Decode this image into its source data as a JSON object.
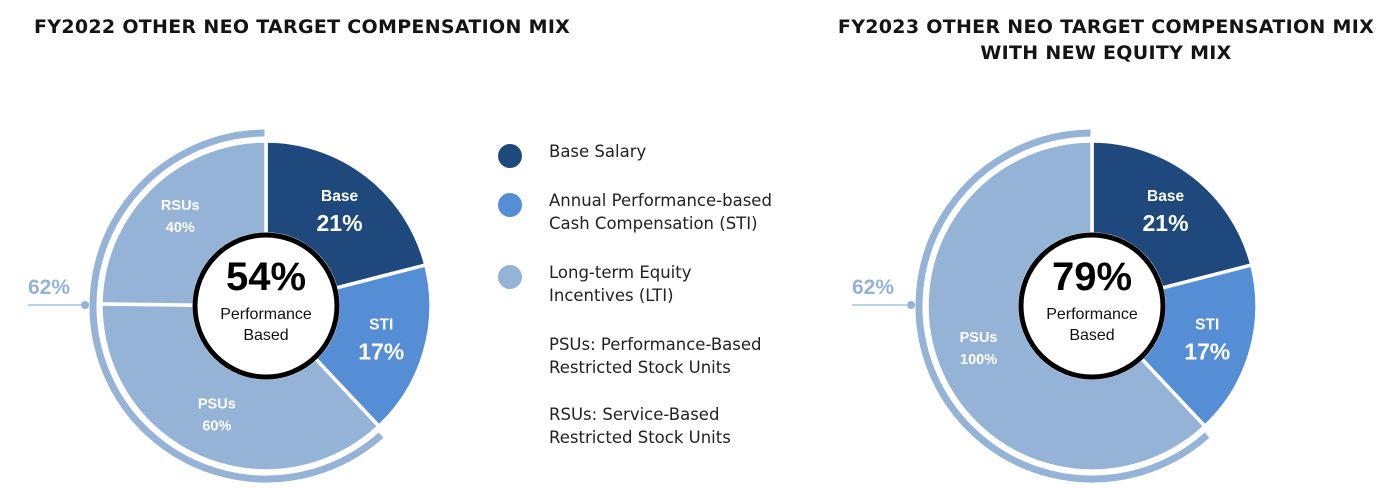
{
  "colors": {
    "base": "#1f497d",
    "sti": "#558ed5",
    "lti": "#95b3d7",
    "center_ring": "#000000",
    "text_dark": "#141414",
    "text_light": "#ffffff"
  },
  "legend": {
    "items": [
      {
        "key": "base",
        "label": "Base Salary"
      },
      {
        "key": "sti",
        "label": "Annual Performance-based\nCash Compensation (STI)"
      },
      {
        "key": "lti",
        "label": "Long-term Equity\nIncentives (LTI)"
      }
    ],
    "notes": [
      "PSUs: Performance-Based\nRestricted Stock Units",
      "RSUs: Service-Based\nRestricted Stock Units"
    ]
  },
  "chart_data": [
    {
      "type": "pie",
      "title": "FY2022 OTHER NEO TARGET COMPENSATION MIX",
      "center_value": "54%",
      "center_label": [
        "Performance",
        "Based"
      ],
      "outer_label": "62%",
      "slices": [
        {
          "name": "Base",
          "value": 21,
          "label": "21%",
          "color": "base"
        },
        {
          "name": "STI",
          "value": 17,
          "label": "17%",
          "color": "sti"
        },
        {
          "name": "PSUs",
          "value": 37.2,
          "label": "60%",
          "color": "lti"
        },
        {
          "name": "RSUs",
          "value": 24.8,
          "label": "40%",
          "color": "lti"
        }
      ]
    },
    {
      "type": "pie",
      "title_lines": [
        "FY2023 OTHER NEO TARGET COMPENSATION MIX",
        "WITH NEW EQUITY MIX"
      ],
      "center_value": "79%",
      "center_label": [
        "Performance",
        "Based"
      ],
      "outer_label": "62%",
      "slices": [
        {
          "name": "Base",
          "value": 21,
          "label": "21%",
          "color": "base"
        },
        {
          "name": "STI",
          "value": 17,
          "label": "17%",
          "color": "sti"
        },
        {
          "name": "PSUs",
          "value": 62,
          "label": "100%",
          "color": "lti"
        }
      ]
    }
  ]
}
